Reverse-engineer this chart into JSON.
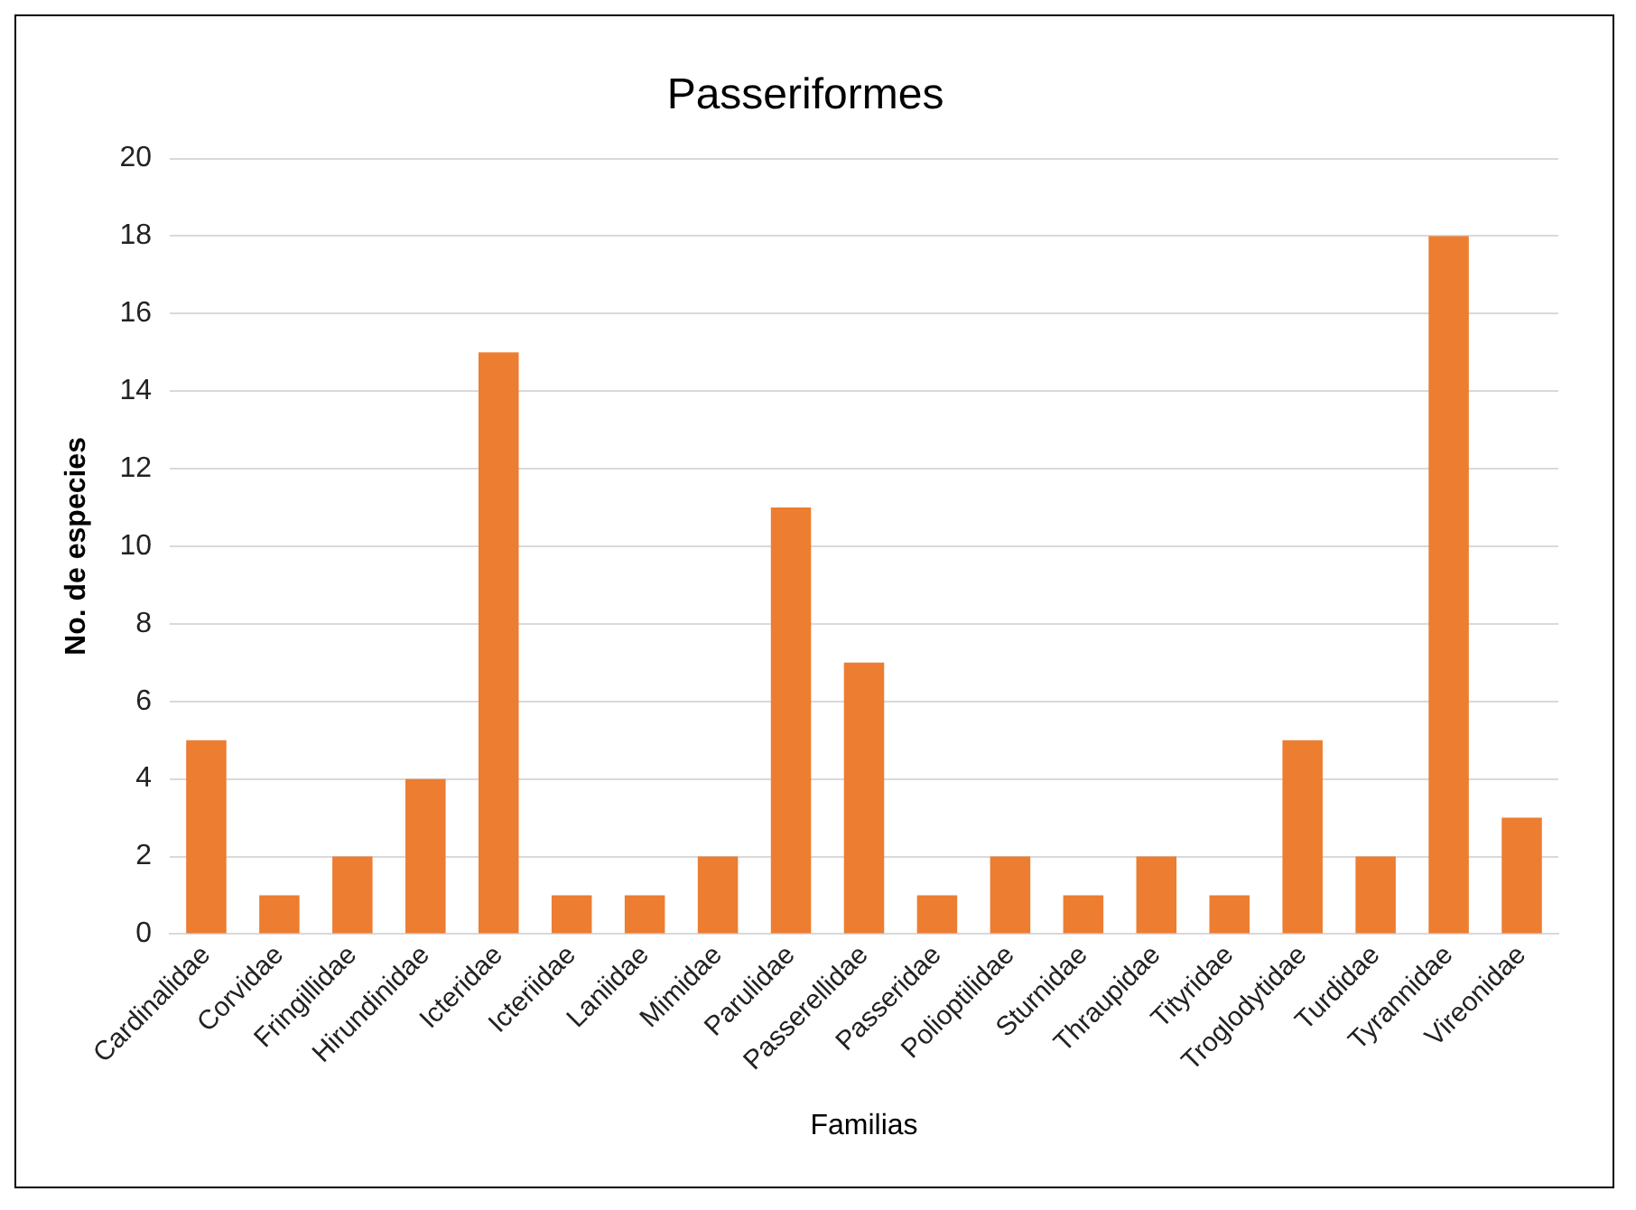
{
  "chart_data": {
    "type": "bar",
    "title": "Passeriformes",
    "xlabel": "Familias",
    "ylabel": "No. de especies",
    "categories": [
      "Cardinalidae",
      "Corvidae",
      "Fringillidae",
      "Hirundinidae",
      "Icteridae",
      "Icteriidae",
      "Laniidae",
      "Mimidae",
      "Parulidae",
      "Passerellidae",
      "Passeridae",
      "Polioptilidae",
      "Sturnidae",
      "Thraupidae",
      "Tityridae",
      "Troglodytidae",
      "Turdidae",
      "Tyrannidae",
      "Vireonidae"
    ],
    "values": [
      5,
      1,
      2,
      4,
      15,
      1,
      1,
      2,
      11,
      7,
      1,
      2,
      1,
      2,
      1,
      5,
      2,
      18,
      3
    ],
    "color": "#ed7d31",
    "ylim": [
      0,
      20
    ],
    "yticks": [
      0,
      2,
      4,
      6,
      8,
      10,
      12,
      14,
      16,
      18,
      20
    ],
    "grid": "y"
  }
}
